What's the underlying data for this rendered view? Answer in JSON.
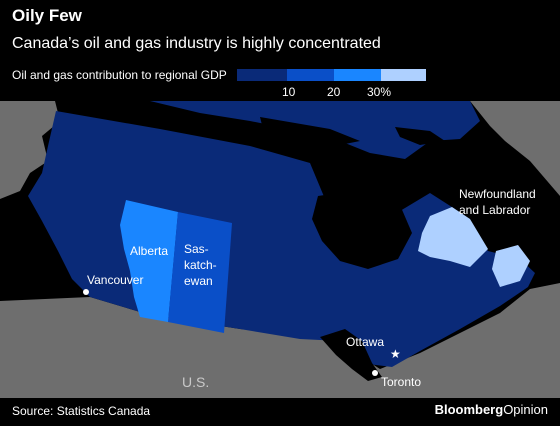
{
  "title": "Oily Few",
  "subtitle": "Canada’s oil and gas industry is highly concentrated",
  "legend": {
    "label": "Oil and gas contribution to regional GDP",
    "ticks": [
      "10",
      "20",
      "30%"
    ],
    "colors": [
      "#0a2a78",
      "#0a4fc8",
      "#1a86ff",
      "#aed0ff"
    ]
  },
  "regions": {
    "alberta": "Alberta",
    "saskatchewan_l1": "Sas-",
    "saskatchewan_l2": "katch-",
    "saskatchewan_l3": "ewan",
    "newfoundland_l1": "Newfoundland",
    "newfoundland_l2": "and Labrador",
    "us": "U.S."
  },
  "cities": {
    "vancouver": "Vancouver",
    "ottawa": "Ottawa",
    "toronto": "Toronto"
  },
  "colors": {
    "background": "#000000",
    "land_other": "#6e6e6e",
    "canada_low": "#0a2a78",
    "canada_mid": "#0a4fc8",
    "canada_high": "#1a86ff",
    "canada_top": "#aed0ff"
  },
  "source": "Source: Statistics Canada",
  "brand": {
    "part1": "Bloomberg",
    "part2": "Opinion"
  }
}
